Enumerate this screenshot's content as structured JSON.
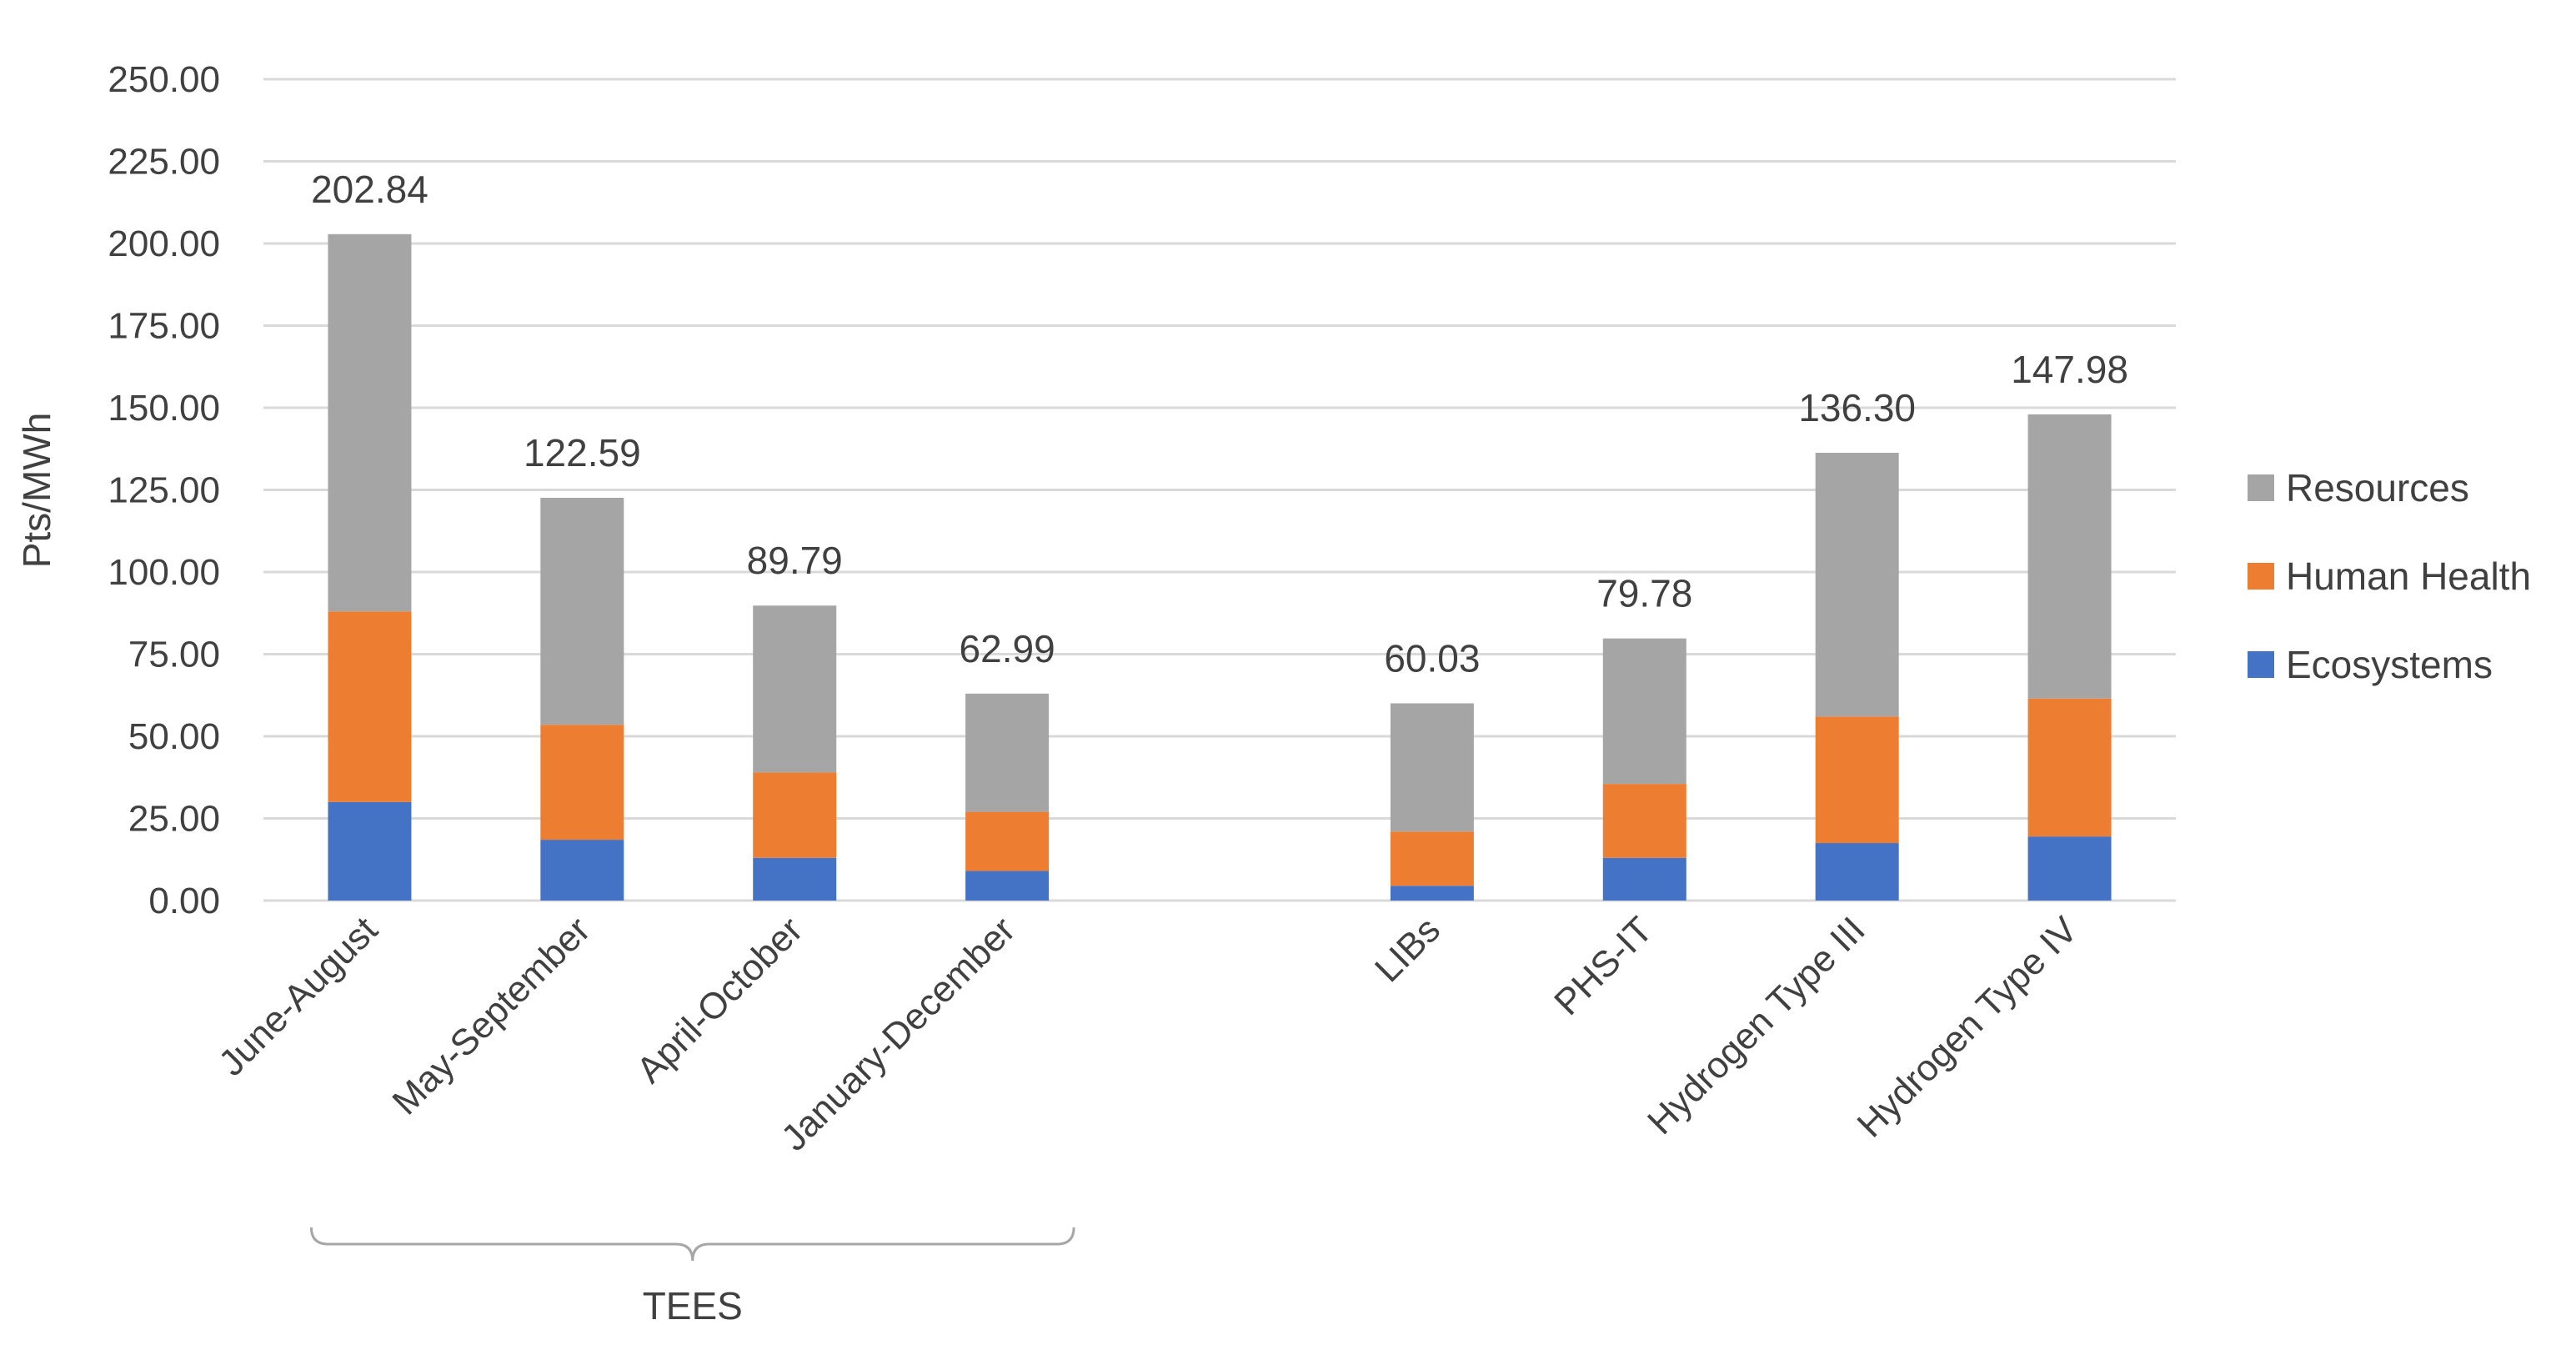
{
  "chart_data": {
    "type": "bar",
    "stacked": true,
    "title": "",
    "xlabel": "",
    "ylabel": "Pts/MWh",
    "ylim": [
      0,
      250
    ],
    "ytick_step": 25,
    "yticks": [
      "0.00",
      "25.00",
      "50.00",
      "75.00",
      "100.00",
      "125.00",
      "150.00",
      "175.00",
      "200.00",
      "225.00",
      "250.00"
    ],
    "grid": true,
    "legend_position": "right",
    "categories": [
      "June-August",
      "May-September",
      "April-October",
      "January-December",
      "",
      "LIBs",
      "PHS-IT",
      "Hydrogen Type III",
      "Hydrogen Type IV"
    ],
    "series": [
      {
        "name": "Ecosystems",
        "color": "#4472c4",
        "values": [
          30,
          18.5,
          13,
          9,
          null,
          4.5,
          13,
          17.5,
          19.5
        ]
      },
      {
        "name": "Human Health",
        "color": "#ed7d31",
        "values": [
          58,
          35,
          26,
          18,
          null,
          16.5,
          22.5,
          38.5,
          42
        ]
      },
      {
        "name": "Resources",
        "color": "#a5a5a5",
        "values": [
          114.84,
          69.09,
          50.79,
          35.99,
          null,
          39.03,
          44.28,
          80.3,
          86.48
        ]
      }
    ],
    "totals": [
      "202.84",
      "122.59",
      "89.79",
      "62.99",
      "",
      "60.03",
      "79.78",
      "136.30",
      "147.98"
    ],
    "group_annotation": {
      "label": "TEES",
      "spans": [
        "June-August",
        "January-December"
      ]
    }
  }
}
